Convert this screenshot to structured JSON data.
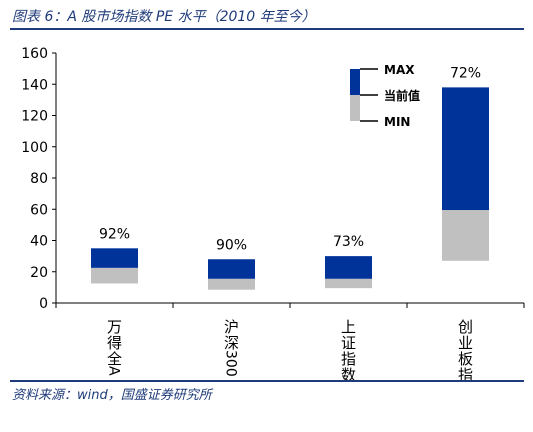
{
  "title": "图表 6：A 股市场指数 PE 水平（2010 年至今）",
  "source": "资料来源：wind，国盛证券研究所",
  "colors": {
    "upper": "#003399",
    "lower": "#c0c0c0",
    "text_blue": "#1f3b7a"
  },
  "chart_data": {
    "type": "bar",
    "stacked_range": true,
    "categories": [
      "万得全A",
      "沪深300",
      "上证指数",
      "创业板指"
    ],
    "series": [
      {
        "name": "MIN",
        "values": [
          12.5,
          8.5,
          9.5,
          27
        ]
      },
      {
        "name": "当前值",
        "values": [
          22.5,
          15.5,
          15.5,
          59.5
        ]
      },
      {
        "name": "MAX",
        "values": [
          35,
          28,
          30,
          138
        ]
      }
    ],
    "percentiles": [
      "92%",
      "90%",
      "73%",
      "72%"
    ],
    "ylim": [
      0,
      160
    ],
    "yticks": [
      0,
      20,
      40,
      60,
      80,
      100,
      120,
      140,
      160
    ],
    "legend_position": "top-right",
    "grid": false
  }
}
